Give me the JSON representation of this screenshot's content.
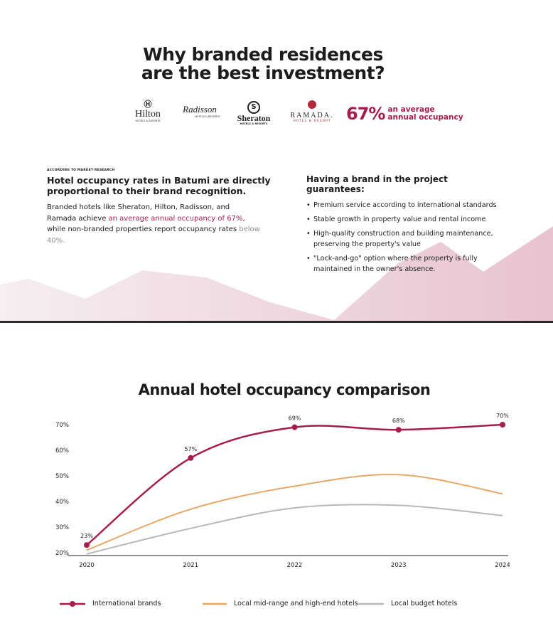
{
  "hero": {
    "title_line1": "Why branded residences",
    "title_line2": "are the best investment?",
    "logos": [
      {
        "name": "Hilton",
        "sub": "HOTELS & RESORTS"
      },
      {
        "name": "Radisson",
        "sub": "HOTELS & RESORTS"
      },
      {
        "name": "Sheraton",
        "sub": "HOTELS & RESORTS"
      },
      {
        "name": "RAMADA",
        "sub": "HOTEL & RESORT"
      }
    ],
    "stat_value": "67%",
    "stat_line1": "an average",
    "stat_line2": "annual occupancy"
  },
  "left": {
    "kicker": "ACCORDING TO MARKET RESEARCH",
    "lead": "Hotel occupancy rates in Batumi are directly proportional to their brand recognition.",
    "para_1": "Branded hotels like Sheraton, Hilton, Radisson, and Ramada achieve ",
    "para_accent": "an average annual occupancy of 67%",
    "para_2": ", while non-branded properties report occupancy rates ",
    "para_muted": "below 40%."
  },
  "right": {
    "heading": "Having a brand in the project guarantees:",
    "items": [
      "Premium service according to international standards",
      "Stable growth in property value and rental income",
      "High-quality construction and building maintenance, preserving the property's value",
      "\"Lock-and-go\" option where the property is fully maintained in the owner's absence."
    ]
  },
  "colors": {
    "accent": "#a61c4b",
    "orange": "#e8a867",
    "gray": "#b8b8b8",
    "pink_bg": "#eccbd5"
  },
  "chart_data": {
    "type": "line",
    "title": "Annual hotel occupancy comparison",
    "categories": [
      "2020",
      "2021",
      "2022",
      "2023",
      "2024"
    ],
    "y_ticks": [
      "20%",
      "30%",
      "40%",
      "50%",
      "60%",
      "70%"
    ],
    "ylim": [
      20,
      70
    ],
    "grid": false,
    "legend_placement": "bottom",
    "series": [
      {
        "name": "International brands",
        "values": [
          23,
          57,
          69,
          68,
          70
        ],
        "labels": [
          "23%",
          "57%",
          "69%",
          "68%",
          "70%"
        ],
        "color": "#a61c4b",
        "markers": true
      },
      {
        "name": "Local mid-range and high-end hotels",
        "values": [
          21,
          37,
          46,
          50.5,
          43
        ],
        "color": "#e8a867",
        "markers": false
      },
      {
        "name": "Local budget hotels",
        "values": [
          19.5,
          29.5,
          37.5,
          38.5,
          34.5
        ],
        "color": "#b8b8b8",
        "markers": false
      }
    ]
  }
}
